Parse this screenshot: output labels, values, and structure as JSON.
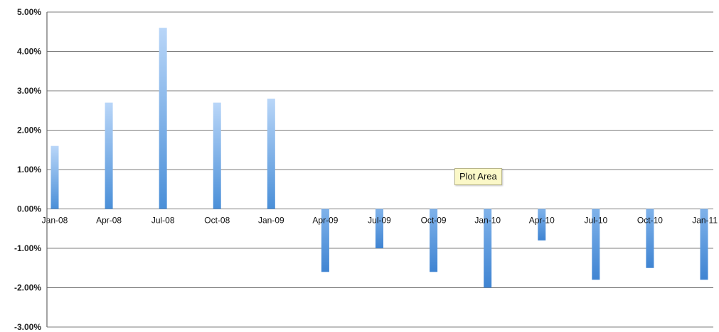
{
  "chart_data": {
    "type": "bar",
    "categories": [
      "Jan-08",
      "Apr-08",
      "Jul-08",
      "Oct-08",
      "Jan-09",
      "Apr-09",
      "Jul-09",
      "Oct-09",
      "Jan-10",
      "Apr-10",
      "Jul-10",
      "Oct-10",
      "Jan-11"
    ],
    "values": [
      1.6,
      2.7,
      4.6,
      2.7,
      2.8,
      -1.6,
      -1.0,
      -1.6,
      -2.0,
      -0.8,
      -1.8,
      -1.5,
      -1.8
    ],
    "value_unit": "%",
    "ylim": [
      -3.0,
      5.0
    ],
    "yticks": [
      "5.00%",
      "4.00%",
      "3.00%",
      "2.00%",
      "1.00%",
      "0.00%",
      "-1.00%",
      "-2.00%",
      "-3.00%"
    ],
    "grid": true,
    "bar_color_top": "#b9d6f8",
    "bar_color_bottom": "#4a8fd8",
    "tooltip": "Plot Area"
  }
}
